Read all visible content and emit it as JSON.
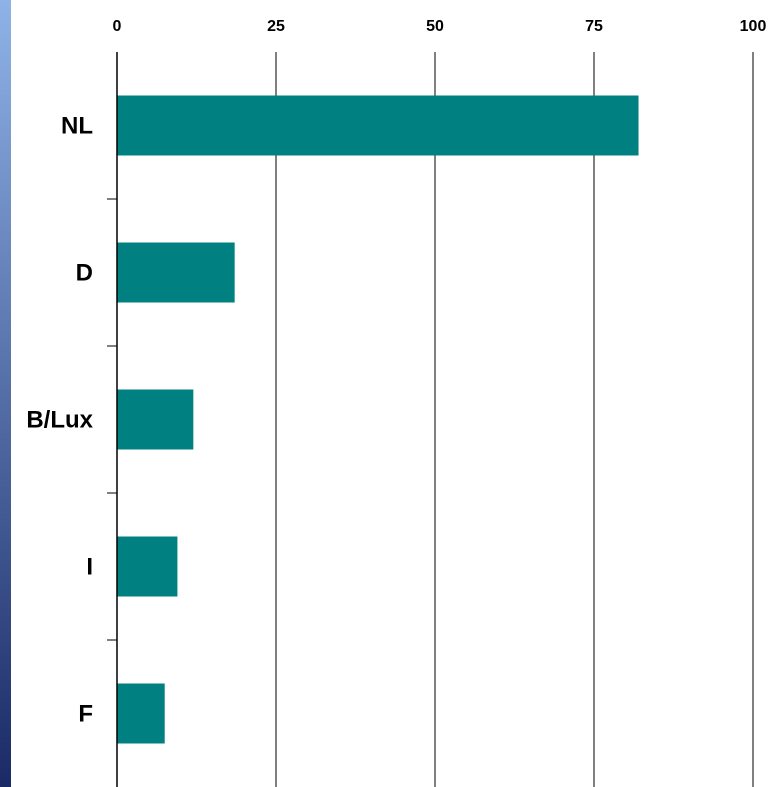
{
  "colors": {
    "bar": "#008080",
    "grid": "#000000",
    "side_strip_top": "#8fb3e6",
    "side_strip_bottom": "#1a2a66"
  },
  "chart_data": {
    "type": "bar",
    "orientation": "horizontal",
    "categories": [
      "NL",
      "D",
      "B/Lux",
      "I",
      "F"
    ],
    "values": [
      82,
      18.5,
      12,
      9.5,
      7.5
    ],
    "xlim": [
      0,
      100
    ],
    "x_ticks": [
      "0",
      "25",
      "50",
      "75",
      "100"
    ],
    "x_axis_position": "top",
    "grid": true,
    "legend": "none",
    "title": "",
    "xlabel": "",
    "ylabel": ""
  }
}
